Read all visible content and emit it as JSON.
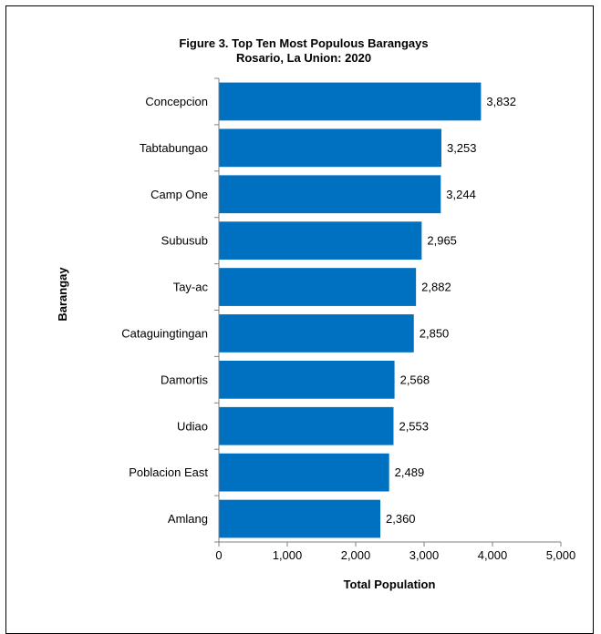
{
  "chart_data": {
    "type": "bar",
    "orientation": "horizontal",
    "title": "Figure 3. Top Ten Most Populous Barangays",
    "subtitle": "Rosario, La Union: 2020",
    "xlabel": "Total Population",
    "ylabel": "Barangay",
    "categories": [
      "Concepcion",
      "Tabtabungao",
      "Camp One",
      "Subusub",
      "Tay-ac",
      "Cataguingtingan",
      "Damortis",
      "Udiao",
      "Poblacion East",
      "Amlang"
    ],
    "values": [
      3832,
      3253,
      3244,
      2965,
      2882,
      2850,
      2568,
      2553,
      2489,
      2360
    ],
    "value_labels": [
      "3,832",
      "3,253",
      "3,244",
      "2,965",
      "2,882",
      "2,850",
      "2,568",
      "2,553",
      "2,489",
      "2,360"
    ],
    "xlim": [
      0,
      5000
    ],
    "xticks": [
      0,
      1000,
      2000,
      3000,
      4000,
      5000
    ],
    "xtick_labels": [
      "0",
      "1,000",
      "2,000",
      "3,000",
      "4,000",
      "5,000"
    ],
    "grid": false,
    "legend": "none",
    "bar_color": "#0070C0"
  }
}
